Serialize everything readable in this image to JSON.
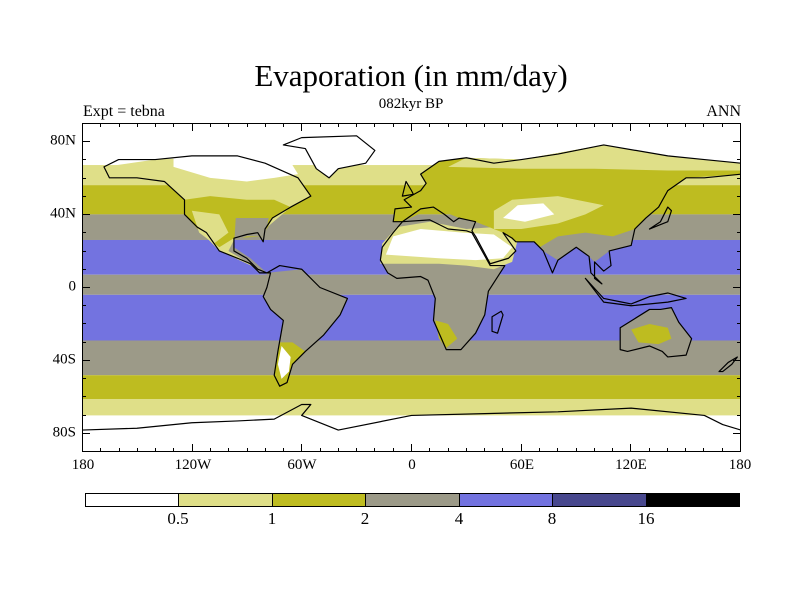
{
  "title": "Evaporation (in mm/day)",
  "subtitle": "082kyr BP",
  "left_string": "Expt = tebna",
  "right_string": "ANN",
  "chart_data": {
    "type": "heatmap",
    "projection": "cylindrical-equidistant",
    "title": "Evaporation (in mm/day)",
    "variable": "Evaporation",
    "units": "mm/day",
    "xlim": [
      -180,
      180
    ],
    "ylim": [
      -90,
      90
    ],
    "x_ticks": [
      {
        "value": -180,
        "label": "180"
      },
      {
        "value": -120,
        "label": "120W"
      },
      {
        "value": -60,
        "label": "60W"
      },
      {
        "value": 0,
        "label": "0"
      },
      {
        "value": 60,
        "label": "60E"
      },
      {
        "value": 120,
        "label": "120E"
      },
      {
        "value": 180,
        "label": "180"
      }
    ],
    "y_ticks": [
      {
        "value": 80,
        "label": "80N"
      },
      {
        "value": 40,
        "label": "40N"
      },
      {
        "value": 0,
        "label": "0"
      },
      {
        "value": -40,
        "label": "40S"
      },
      {
        "value": -80,
        "label": "80S"
      }
    ],
    "colorbar": {
      "levels": [
        "0.5",
        "1",
        "2",
        "4",
        "8",
        "16"
      ],
      "colors": [
        "#ffffff",
        "#dfdf88",
        "#bebc20",
        "#9c9a88",
        "#7373e0",
        "#48488e",
        "#000000"
      ],
      "orientation": "horizontal",
      "placement": "bottom"
    },
    "zonal_pattern_ocean": [
      {
        "lat_range": [
          67,
          90
        ],
        "class": "<0.5"
      },
      {
        "lat_range": [
          56,
          67
        ],
        "class": "0.5-1"
      },
      {
        "lat_range": [
          40,
          56
        ],
        "class": "1-2"
      },
      {
        "lat_range": [
          26,
          40
        ],
        "class": "2-4"
      },
      {
        "lat_range": [
          7,
          26
        ],
        "class": "4-8"
      },
      {
        "lat_range": [
          -4,
          7
        ],
        "class": "2-4"
      },
      {
        "lat_range": [
          -29,
          -4
        ],
        "class": "4-8"
      },
      {
        "lat_range": [
          -48,
          -29
        ],
        "class": "2-4"
      },
      {
        "lat_range": [
          -61,
          -48
        ],
        "class": "1-2"
      },
      {
        "lat_range": [
          -70,
          -61
        ],
        "class": "0.5-1"
      },
      {
        "lat_range": [
          -90,
          -70
        ],
        "class": "<0.5"
      }
    ]
  }
}
